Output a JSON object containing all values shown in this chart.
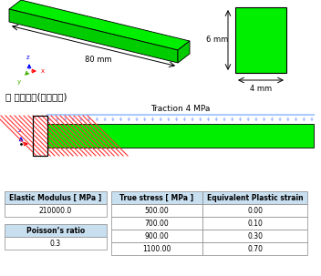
{
  "title_korean": "〉 경계조건(분포하중)",
  "beam_length_label": "80 mm",
  "cs_height_label": "6 mm",
  "cs_width_label": "4 mm",
  "traction_label": "Traction 4 MPa",
  "beam_color": "#00ee00",
  "beam_color_dark": "#00cc00",
  "traction_arrow_color": "#88aaff",
  "traction_line_color": "#aaccff",
  "fixed_hatch_color": "#ff3333",
  "table_header_bg": "#c8dff0",
  "table1_header": [
    "Elastic Modulus [ MPa ]"
  ],
  "table1_data": [
    [
      "210000.0"
    ]
  ],
  "table2_header": [
    "Poisson’s ratio"
  ],
  "table2_data": [
    [
      "0.3"
    ]
  ],
  "table3_header": [
    "True stress [ MPa ]",
    "Equivalent Plastic strain"
  ],
  "table3_data": [
    [
      "500.00",
      "0.00"
    ],
    [
      "700.00",
      "0.10"
    ],
    [
      "900.00",
      "0.30"
    ],
    [
      "1100.00",
      "0.70"
    ]
  ],
  "bg_color": "#ffffff"
}
